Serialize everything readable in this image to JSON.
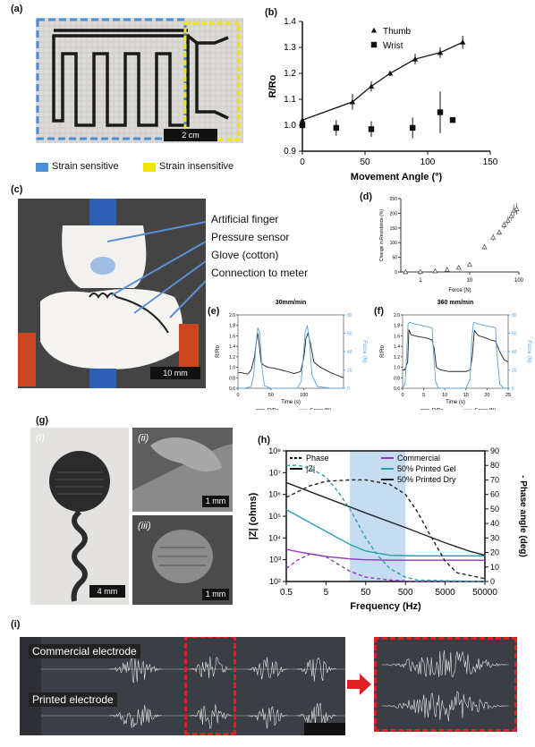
{
  "panels": {
    "a": {
      "label": "(a)",
      "scalebar": "2 cm",
      "legend": [
        {
          "label": "Strain sensitive",
          "color": "#4a90d9"
        },
        {
          "label": "Strain insensitive",
          "color": "#f2e600"
        }
      ]
    },
    "b": {
      "label": "(b)"
    },
    "c": {
      "label": "(c)",
      "scalebar": "10 mm",
      "annotations": [
        "Artificial finger",
        "Pressure sensor",
        "Glove (cotton)",
        "Connection to meter"
      ]
    },
    "d": {
      "label": "(d)"
    },
    "e": {
      "label": "(e)"
    },
    "f": {
      "label": "(f)"
    },
    "g": {
      "label": "(g)",
      "sub": [
        "(i)",
        "(ii)",
        "(iii)"
      ],
      "scalebars": [
        "4 mm",
        "1 mm",
        "1 mm"
      ]
    },
    "h": {
      "label": "(h)"
    },
    "i": {
      "label": "(i)",
      "tracks": [
        "Commercial electrode",
        "Printed electrode"
      ]
    }
  },
  "chart_data": [
    {
      "id": "b",
      "type": "line",
      "xlabel": "Movement Angle  (°)",
      "ylabel": "R/Ro",
      "xlim": [
        0,
        150
      ],
      "ylim": [
        0.9,
        1.4
      ],
      "xticks": [
        "0",
        "50",
        "100",
        "150"
      ],
      "yticks": [
        "0.9",
        "1.0",
        "1.1",
        "1.2",
        "1.3",
        "1.4"
      ],
      "legend_position": "top-left",
      "series": [
        {
          "name": "Thumb",
          "marker": "triangle",
          "x": [
            0,
            40,
            55,
            70,
            90,
            110,
            128
          ],
          "y": [
            1.02,
            1.09,
            1.15,
            1.2,
            1.255,
            1.28,
            1.32
          ],
          "err": [
            0.02,
            0.03,
            0.02,
            0.01,
            0.02,
            0.02,
            0.025
          ]
        },
        {
          "name": "Wrist",
          "marker": "square",
          "x": [
            0,
            27,
            55,
            88,
            110,
            120
          ],
          "y": [
            1.0,
            0.99,
            0.985,
            0.99,
            1.05,
            1.02
          ],
          "err": [
            0.02,
            0.03,
            0.03,
            0.04,
            0.08,
            0.005
          ]
        }
      ]
    },
    {
      "id": "d",
      "type": "scatter",
      "xlabel": "Force (N)",
      "ylabel": "Change in Resistance (%)",
      "xscale": "log",
      "xlim": [
        0.4,
        100
      ],
      "ylim": [
        0,
        250
      ],
      "xticks": [
        "1",
        "10",
        "100"
      ],
      "yticks": [
        "0",
        "50",
        "100",
        "150",
        "200",
        "250"
      ],
      "series": [
        {
          "marker": "triangle",
          "x": [
            0.5,
            1,
            2,
            3.5,
            6,
            10,
            20,
            30,
            40,
            50,
            60,
            70,
            80,
            90
          ],
          "y": [
            0,
            1,
            3,
            8,
            15,
            25,
            85,
            118,
            135,
            160,
            175,
            190,
            210,
            215
          ],
          "err": [
            1,
            1,
            2,
            3,
            3,
            5,
            10,
            12,
            10,
            12,
            15,
            15,
            20,
            20
          ]
        }
      ]
    },
    {
      "id": "e",
      "type": "line",
      "title": "30mm/min",
      "xlabel": "Time (s)",
      "ylabel": "R/Ro",
      "y2label": "Force (N)",
      "xlim": [
        0,
        160
      ],
      "ylim": [
        0.6,
        2.0
      ],
      "y2lim": [
        0,
        80
      ],
      "xticks": [
        "0",
        "50",
        "100"
      ],
      "yticks": [
        "0.6",
        "0.8",
        "1.0",
        "1.2",
        "1.4",
        "1.6",
        "1.8",
        "2.0"
      ],
      "y2ticks": [
        "0",
        "20",
        "40",
        "60",
        "80"
      ],
      "series": [
        {
          "name": "R/Ro",
          "axis": "left",
          "color": "#222",
          "x": [
            0,
            5,
            10,
            15,
            20,
            25,
            28,
            30,
            32,
            35,
            38,
            45,
            55,
            65,
            75,
            85,
            95,
            100,
            103,
            106,
            110,
            115,
            125,
            140,
            150,
            160
          ],
          "y": [
            0.9,
            0.9,
            0.88,
            0.87,
            0.95,
            1.2,
            1.5,
            1.65,
            1.45,
            1.1,
            1.05,
            1.0,
            0.98,
            0.95,
            0.92,
            0.88,
            0.92,
            1.2,
            1.55,
            1.65,
            1.45,
            1.1,
            1.0,
            0.9,
            0.85,
            0.8
          ]
        },
        {
          "name": "Force (N)",
          "axis": "right",
          "color": "#5aa0e0",
          "x": [
            0,
            10,
            20,
            24,
            27,
            30,
            33,
            36,
            40,
            50,
            70,
            90,
            96,
            99,
            102,
            105,
            108,
            112,
            120,
            140,
            160
          ],
          "y": [
            0,
            0,
            2,
            15,
            45,
            66,
            60,
            25,
            3,
            0,
            0,
            0,
            8,
            35,
            62,
            68,
            55,
            15,
            2,
            0,
            0
          ]
        }
      ]
    },
    {
      "id": "f",
      "type": "line",
      "title": "360 mm/min",
      "xlabel": "Time (s)",
      "ylabel": "R/Ro",
      "y2label": "Force (N)",
      "xlim": [
        0,
        25
      ],
      "ylim": [
        0.6,
        2.0
      ],
      "y2lim": [
        0,
        80
      ],
      "xticks": [
        "0",
        "5",
        "10",
        "15",
        "20",
        "25"
      ],
      "yticks": [
        "0.6",
        "0.8",
        "1.0",
        "1.2",
        "1.4",
        "1.6",
        "1.8",
        "2.0"
      ],
      "y2ticks": [
        "0",
        "20",
        "40",
        "60",
        "80"
      ],
      "series": [
        {
          "name": "R/Ro",
          "axis": "left",
          "color": "#222",
          "x": [
            0,
            0.5,
            1.2,
            1.5,
            2,
            3,
            4,
            5,
            6,
            7,
            7.5,
            8,
            9,
            11,
            13,
            15,
            16,
            16.5,
            17,
            18,
            19,
            20,
            21,
            22,
            23,
            24,
            25
          ],
          "y": [
            0.95,
            0.95,
            1.1,
            1.72,
            1.62,
            1.6,
            1.58,
            1.57,
            1.55,
            1.52,
            1.35,
            1.0,
            0.95,
            0.92,
            0.92,
            0.92,
            0.95,
            1.2,
            1.7,
            1.6,
            1.58,
            1.55,
            1.52,
            1.5,
            1.3,
            1.15,
            1.1
          ]
        },
        {
          "name": "Force (N)",
          "axis": "right",
          "color": "#5aa0e0",
          "x": [
            0,
            0.6,
            1,
            1.3,
            1.6,
            3,
            5,
            7,
            7.3,
            7.8,
            8.5,
            10,
            15,
            16,
            16.4,
            16.8,
            18,
            20,
            22,
            22.3,
            23,
            24,
            25
          ],
          "y": [
            0,
            5,
            40,
            70,
            72,
            70,
            68,
            66,
            40,
            8,
            0,
            0,
            0,
            10,
            55,
            72,
            70,
            68,
            66,
            40,
            5,
            0,
            0
          ]
        }
      ]
    },
    {
      "id": "h",
      "type": "line",
      "xlabel": "Frequency (Hz)",
      "ylabel": "|Z| (ohms)",
      "y2label": "- Phase angle (deg)",
      "xscale": "log",
      "yscale": "log",
      "xlim": [
        0.5,
        50000
      ],
      "ylim": [
        100,
        100000000
      ],
      "y2lim": [
        0,
        90
      ],
      "xticks": [
        "0.5",
        "5",
        "50",
        "500",
        "5000",
        "50000"
      ],
      "yticks": [
        "10²",
        "10³",
        "10⁴",
        "10⁵",
        "10⁶",
        "10⁷",
        "10⁸"
      ],
      "y2ticks": [
        "0",
        "10",
        "20",
        "30",
        "40",
        "50",
        "60",
        "70",
        "80",
        "90"
      ],
      "shaded_region": [
        20,
        500
      ],
      "legend_styles": [
        {
          "label": "Phase",
          "style": "dashed"
        },
        {
          "label": "|Z|",
          "style": "solid"
        }
      ],
      "legend_samples": [
        {
          "label": "Commercial",
          "color": "#8e3bbf"
        },
        {
          "label": "50% Printed Gel",
          "color": "#2a9fb0"
        },
        {
          "label": "50% Printed Dry",
          "color": "#222222"
        }
      ],
      "series": [
        {
          "color": "#8e3bbf",
          "style": "solid",
          "axis": "left",
          "x": [
            0.5,
            1,
            5,
            20,
            50,
            200,
            1000,
            5000,
            50000
          ],
          "y": [
            3000,
            2300,
            1400,
            1100,
            1000,
            950,
            950,
            950,
            950
          ]
        },
        {
          "color": "#2a9fb0",
          "style": "solid",
          "axis": "left",
          "x": [
            0.5,
            1,
            5,
            20,
            50,
            200,
            1000,
            5000,
            50000
          ],
          "y": [
            200000,
            100000,
            20000,
            5000,
            2500,
            1600,
            1500,
            1500,
            1500
          ]
        },
        {
          "color": "#222222",
          "style": "solid",
          "axis": "left",
          "x": [
            0.5,
            5,
            50,
            500,
            5000,
            20000,
            50000
          ],
          "y": [
            3500000,
            700000,
            140000,
            30000,
            6000,
            2500,
            1600
          ]
        },
        {
          "color": "#8e3bbf",
          "style": "dashed",
          "axis": "right",
          "x": [
            0.5,
            1,
            2,
            5,
            10,
            20,
            50,
            200,
            1000,
            50000
          ],
          "y": [
            9,
            15,
            19,
            17,
            12,
            7,
            3,
            1,
            0,
            0
          ]
        },
        {
          "color": "#2a9fb0",
          "style": "dashed",
          "axis": "right",
          "x": [
            0.5,
            1,
            2,
            5,
            10,
            20,
            50,
            100,
            200,
            500,
            1000,
            50000
          ],
          "y": [
            80,
            80,
            78,
            72,
            62,
            50,
            30,
            18,
            9,
            3,
            1,
            0
          ]
        },
        {
          "color": "#222222",
          "style": "dashed",
          "axis": "right",
          "x": [
            0.5,
            2,
            5,
            20,
            50,
            200,
            500,
            1000,
            2000,
            5000,
            10000,
            50000
          ],
          "y": [
            58,
            66,
            69,
            70,
            70,
            67,
            60,
            48,
            33,
            14,
            6,
            2
          ]
        }
      ]
    }
  ]
}
